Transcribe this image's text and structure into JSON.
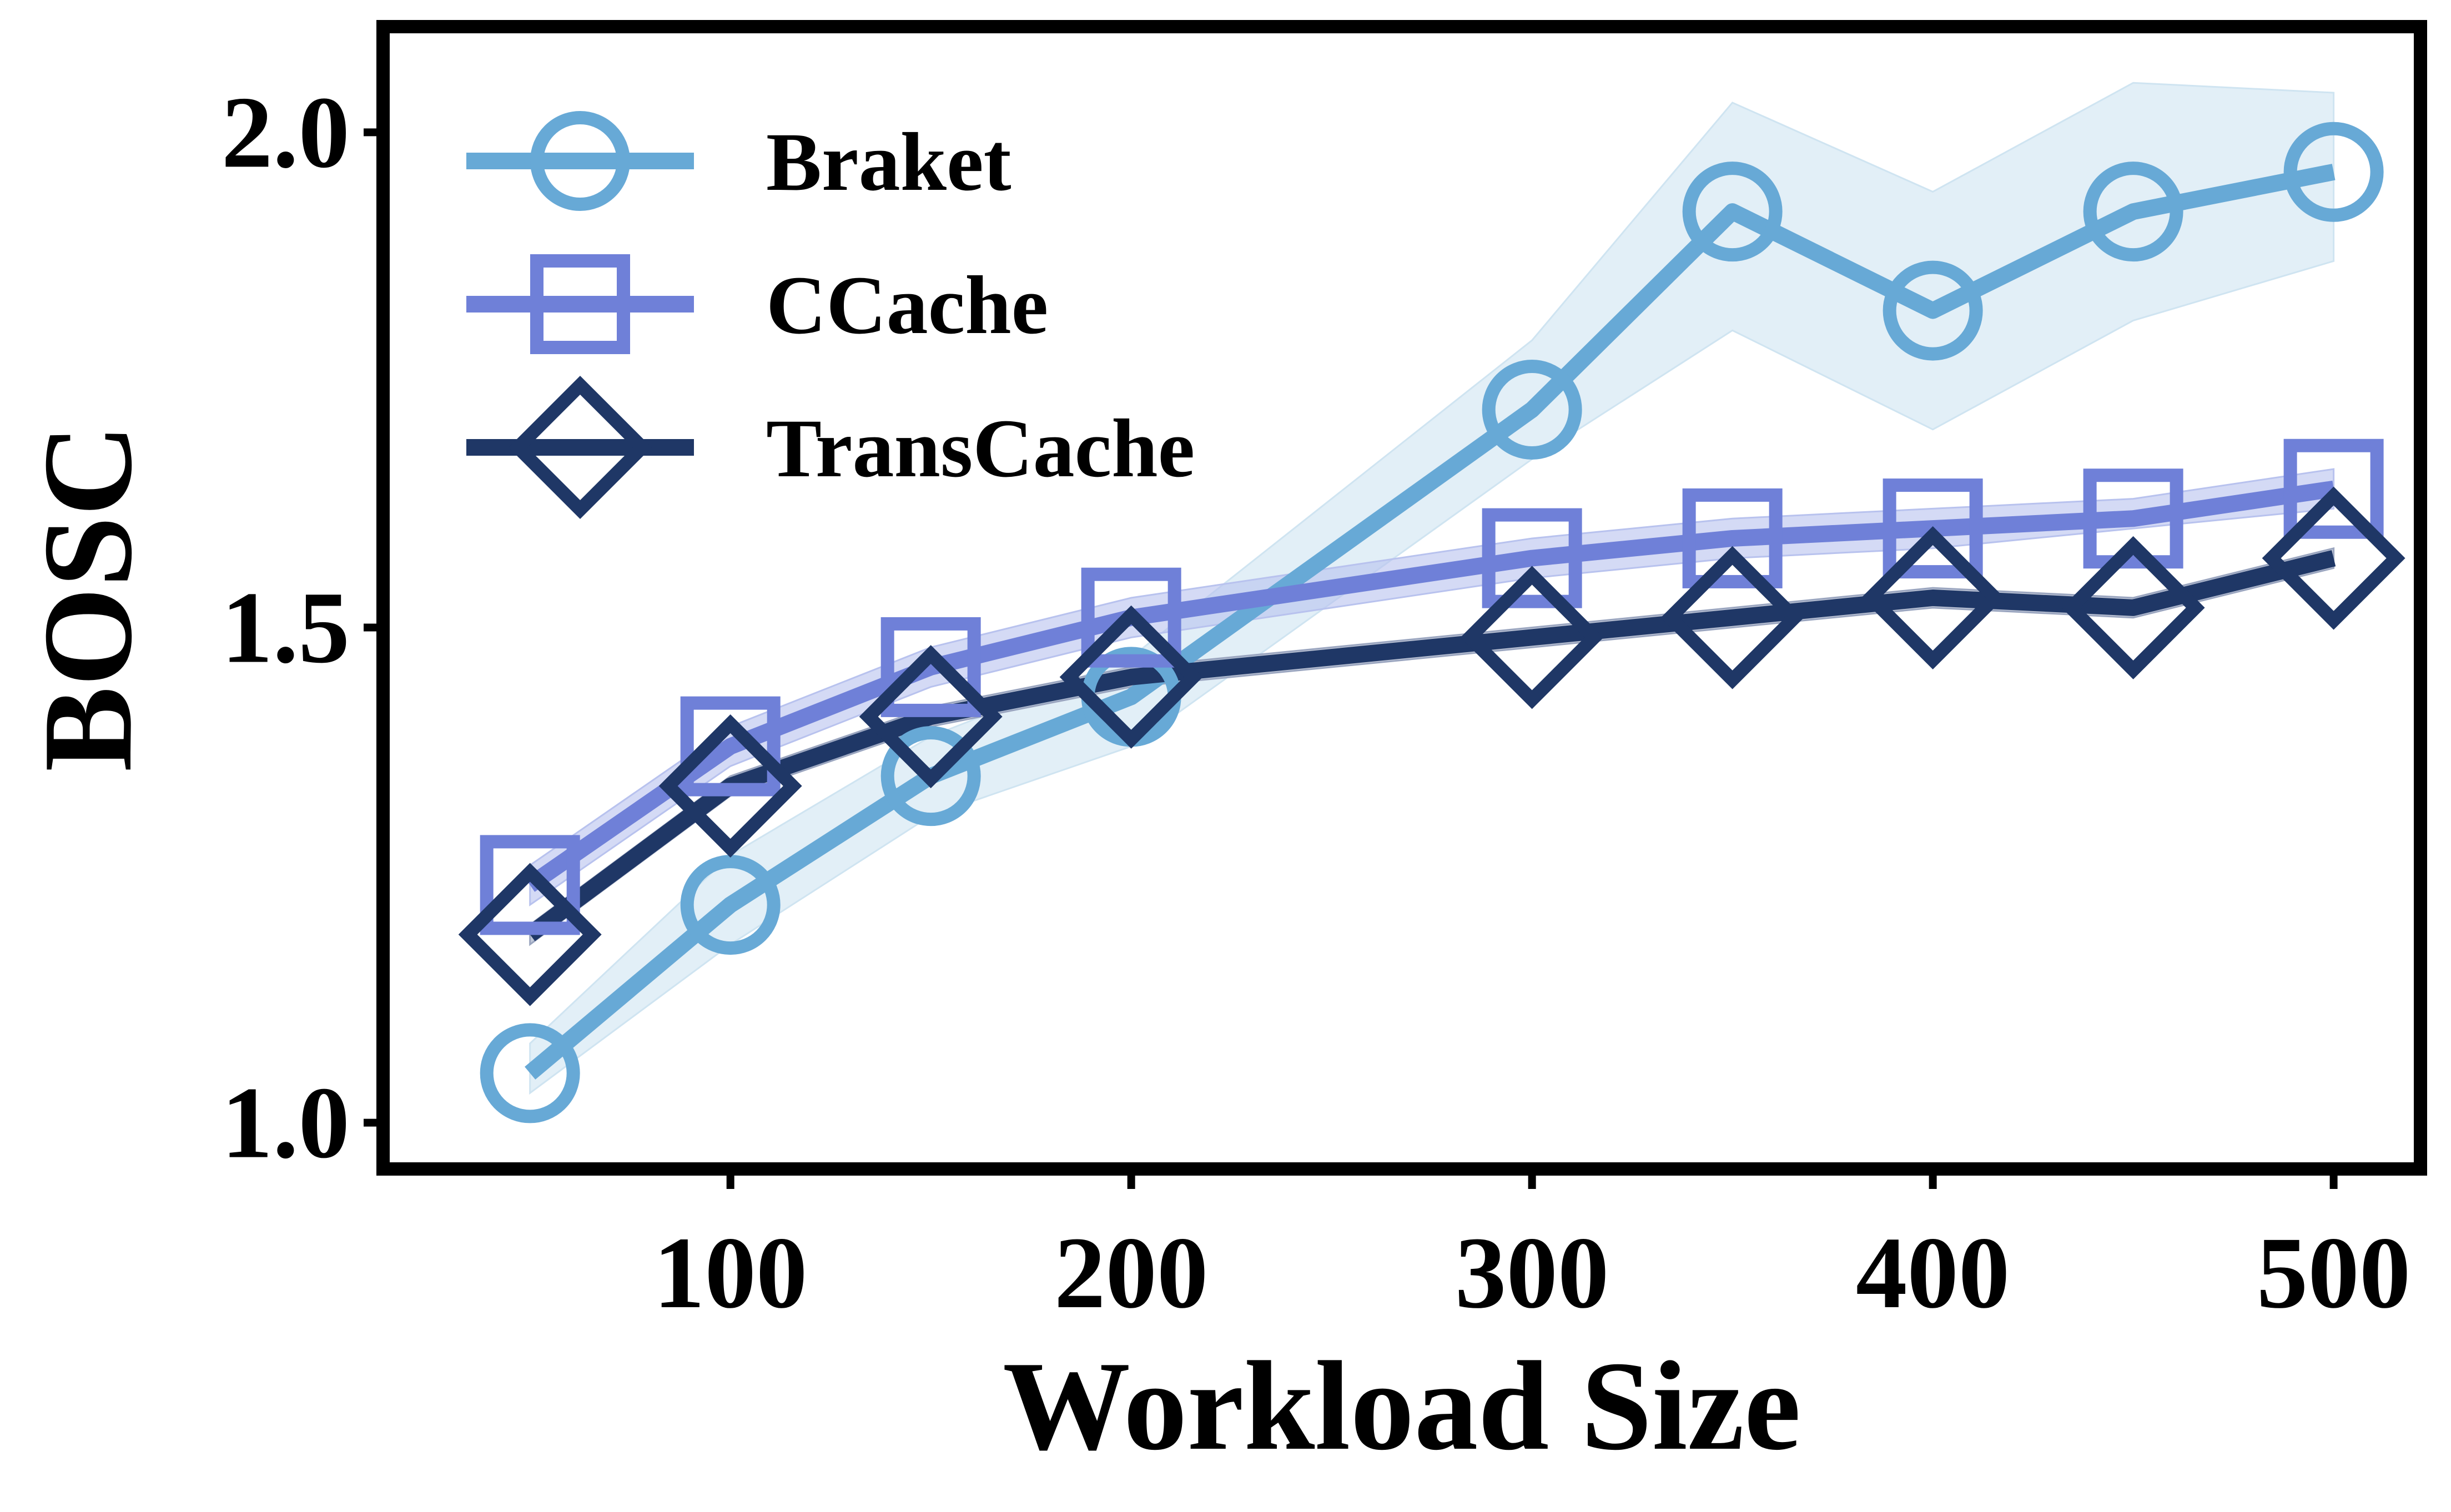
{
  "chart_data": {
    "type": "line",
    "title": "",
    "xlabel": "Workload Size",
    "ylabel": "BOSC",
    "x": [
      50,
      100,
      150,
      200,
      300,
      350,
      400,
      450,
      500
    ],
    "xticks": [
      100,
      200,
      300,
      400,
      500
    ],
    "yticks": [
      1.0,
      1.5,
      2.0
    ],
    "xlim": [
      15,
      520
    ],
    "ylim": [
      0.96,
      2.1
    ],
    "grid": false,
    "legend": "top-left",
    "series": [
      {
        "name": "Braket",
        "marker": "circle",
        "color": "#67a9d6",
        "band_color": "#cfe4f1",
        "values": [
          1.05,
          1.22,
          1.35,
          1.43,
          1.72,
          1.92,
          1.82,
          1.92,
          1.96
        ],
        "lower": [
          1.03,
          1.18,
          1.31,
          1.38,
          1.67,
          1.8,
          1.7,
          1.81,
          1.87
        ],
        "upper": [
          1.08,
          1.27,
          1.39,
          1.47,
          1.79,
          2.03,
          1.94,
          2.05,
          2.04
        ]
      },
      {
        "name": "CCache",
        "marker": "square",
        "color": "#6f80d8",
        "band_color": "#b8c2ee",
        "values": [
          1.24,
          1.38,
          1.46,
          1.51,
          1.57,
          1.59,
          1.6,
          1.61,
          1.64
        ],
        "lower": [
          1.22,
          1.36,
          1.44,
          1.49,
          1.55,
          1.57,
          1.58,
          1.6,
          1.62
        ],
        "upper": [
          1.26,
          1.4,
          1.48,
          1.53,
          1.59,
          1.61,
          1.62,
          1.63,
          1.66
        ]
      },
      {
        "name": "TransCache",
        "marker": "diamond",
        "color": "#1f3766",
        "band_color": "#9aa5bf",
        "values": [
          1.19,
          1.34,
          1.41,
          1.45,
          1.49,
          1.51,
          1.53,
          1.52,
          1.57
        ],
        "lower": [
          1.18,
          1.33,
          1.4,
          1.44,
          1.48,
          1.5,
          1.52,
          1.51,
          1.56
        ],
        "upper": [
          1.2,
          1.35,
          1.42,
          1.46,
          1.5,
          1.52,
          1.54,
          1.53,
          1.58
        ]
      }
    ]
  }
}
